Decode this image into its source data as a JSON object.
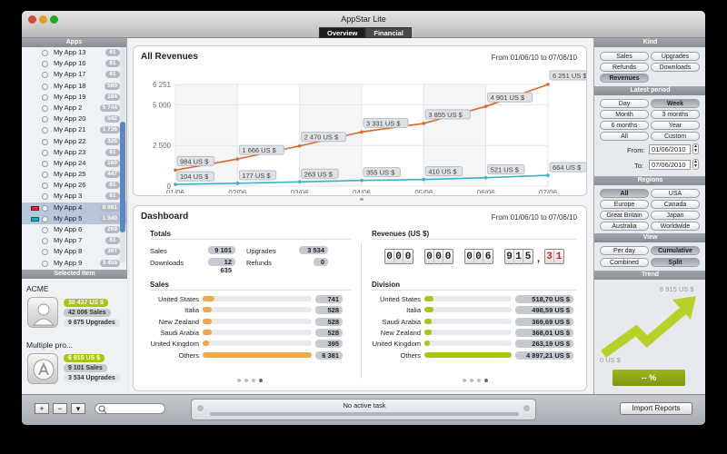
{
  "window": {
    "title": "AppStar Lite",
    "tabs": [
      {
        "label": "Overview"
      },
      {
        "label": "Financial"
      }
    ]
  },
  "sidebar": {
    "apps_header": "Apps",
    "selected_header": "Selected Item",
    "apps": [
      {
        "name": "My App 13",
        "count": "61"
      },
      {
        "name": "My App 16",
        "count": "61"
      },
      {
        "name": "My App 17",
        "count": "61"
      },
      {
        "name": "My App 18",
        "count": "580"
      },
      {
        "name": "My App 19",
        "count": "184"
      },
      {
        "name": "My App 2",
        "count": "5 744"
      },
      {
        "name": "My App 20",
        "count": "542"
      },
      {
        "name": "My App 21",
        "count": "1 736"
      },
      {
        "name": "My App 22",
        "count": "325"
      },
      {
        "name": "My App 23",
        "count": "61"
      },
      {
        "name": "My App 24",
        "count": "160"
      },
      {
        "name": "My App 25",
        "count": "447"
      },
      {
        "name": "My App 26",
        "count": "61"
      },
      {
        "name": "My App 3",
        "count": "61"
      },
      {
        "name": "My App 4",
        "count": "8 061"
      },
      {
        "name": "My App 5",
        "count": "1 040"
      },
      {
        "name": "My App 6",
        "count": "269"
      },
      {
        "name": "My App 7",
        "count": "61"
      },
      {
        "name": "My App 8",
        "count": "307"
      },
      {
        "name": "My App 9",
        "count": "3 456"
      }
    ],
    "selected": [
      {
        "name": "ACME",
        "revenue": "38 437 US $",
        "sales": "42 006 Sales",
        "upgrades": "9 875 Upgrades"
      },
      {
        "name": "Multiple pro...",
        "revenue": "6 915 US $",
        "sales": "9 101 Sales",
        "upgrades": "3 534 Upgrades"
      }
    ]
  },
  "revenues": {
    "title": "All Revenues",
    "range": "From 01/06/10 to 07/06/10"
  },
  "chart_data": {
    "type": "line",
    "x": [
      "01/06",
      "02/06",
      "03/06",
      "04/06",
      "05/06",
      "06/06",
      "07/06"
    ],
    "y_ticks": [
      "6 251",
      "5 000",
      "2 500",
      "0"
    ],
    "ylim": [
      0,
      6251
    ],
    "series": [
      {
        "values": [
          984,
          1666,
          2470,
          3331,
          3855,
          4901,
          6251
        ],
        "labels": [
          "984 US $",
          "1 666 US $",
          "2 470 US $",
          "3 331 US $",
          "3 855 US $",
          "4 901 US $",
          "6 251 US $"
        ],
        "color": "#e0662a"
      },
      {
        "values": [
          104,
          177,
          263,
          355,
          410,
          521,
          664
        ],
        "labels": [
          "104 US $",
          "177 US $",
          "263 US $",
          "355 US $",
          "410 US $",
          "521 US $",
          "664 US $"
        ],
        "color": "#38b3c8"
      }
    ]
  },
  "dashboard": {
    "title": "Dashboard",
    "range": "From 01/06/10 to 07/06/10",
    "totals_title": "Totals",
    "totals": [
      {
        "label": "Sales",
        "value": "9 101"
      },
      {
        "label": "Upgrades",
        "value": "3 534"
      },
      {
        "label": "Downloads",
        "value": "12 635"
      },
      {
        "label": "Refunds",
        "value": "0"
      }
    ],
    "revenues_title": "Revenues (US $)",
    "odometer": [
      "000",
      "000",
      "006",
      "915",
      "31"
    ],
    "odometer_sep": ",",
    "sales_title": "Sales",
    "sales": [
      {
        "label": "United States",
        "value": "741",
        "fraction": 0.11
      },
      {
        "label": "Italia",
        "value": "528",
        "fraction": 0.08
      },
      {
        "label": "New Zealand",
        "value": "528",
        "fraction": 0.08
      },
      {
        "label": "Saudi Arabia",
        "value": "528",
        "fraction": 0.08
      },
      {
        "label": "United Kingdom",
        "value": "395",
        "fraction": 0.06
      },
      {
        "label": "Others",
        "value": "6 381",
        "fraction": 1.0
      }
    ],
    "division_title": "Division",
    "division": [
      {
        "label": "United States",
        "value": "518,70 US $",
        "fraction": 0.1
      },
      {
        "label": "Italia",
        "value": "498,59 US $",
        "fraction": 0.1
      },
      {
        "label": "Saudi Arabia",
        "value": "369,69 US $",
        "fraction": 0.08
      },
      {
        "label": "New Zealand",
        "value": "368,01 US $",
        "fraction": 0.08
      },
      {
        "label": "United Kingdom",
        "value": "263,19 US $",
        "fraction": 0.06
      },
      {
        "label": "Others",
        "value": "4 897,21 US $",
        "fraction": 1.0
      }
    ]
  },
  "right": {
    "kind_header": "Kind",
    "kinds": [
      "Sales",
      "Upgrades",
      "Refunds",
      "Downloads",
      "Revenues"
    ],
    "period_header": "Latest period",
    "periods": [
      "Day",
      "Week",
      "Month",
      "3 months",
      "6 months",
      "Year",
      "All",
      "Custom"
    ],
    "from_label": "From:",
    "from_value": "01/06/2010",
    "to_label": "To:",
    "to_value": "07/06/2010",
    "regions_header": "Regions",
    "regions": [
      "All",
      "USA",
      "Europe",
      "Canada",
      "Great Britain",
      "Japan",
      "Australia",
      "Worldwide"
    ],
    "view_header": "View",
    "views": [
      "Per day",
      "Cumulative",
      "Combined",
      "Split"
    ],
    "trend_header": "Trend",
    "trend_top": "6 915 US $",
    "trend_bottom": "0 US $",
    "trend_pct": "-- %"
  },
  "footer": {
    "task": "No active task",
    "import": "Import Reports",
    "add": "+",
    "remove": "−",
    "menu": "▾"
  },
  "colors": {
    "orange": "#e0662a",
    "cyan": "#38b3c8",
    "green": "#a9c417"
  }
}
